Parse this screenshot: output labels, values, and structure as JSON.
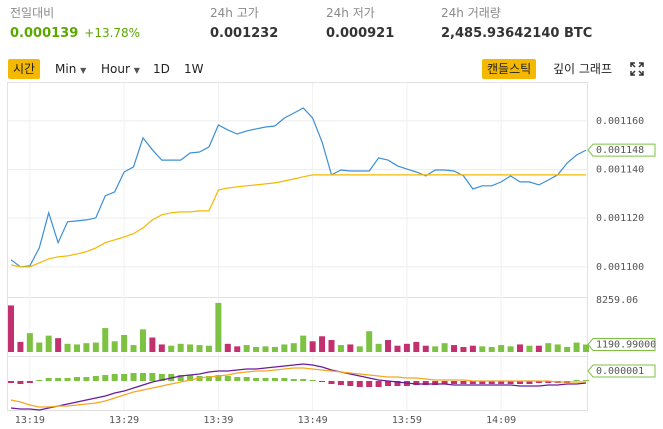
{
  "header": {
    "stats": [
      {
        "label": "전일대비",
        "value": "0.000139",
        "change": "+13.78%"
      },
      {
        "label": "24h 고가",
        "value": "0.001232"
      },
      {
        "label": "24h 저가",
        "value": "0.000921"
      },
      {
        "label": "24h 거래량",
        "value": "2,485.93642140 BTC"
      }
    ]
  },
  "toolbar": {
    "intervals": [
      "시간",
      "Min",
      "Hour",
      "1D",
      "1W"
    ],
    "views": [
      "캔들스틱",
      "깊이 그래프"
    ]
  },
  "chart_data": [
    {
      "type": "line",
      "categories": [
        null,
        null,
        "13:19",
        null,
        null,
        null,
        null,
        null,
        null,
        null,
        null,
        null,
        "13:29",
        null,
        null,
        null,
        null,
        null,
        null,
        null,
        null,
        null,
        "13:39",
        null,
        null,
        null,
        null,
        null,
        null,
        null,
        null,
        null,
        "13:49",
        null,
        null,
        null,
        null,
        null,
        null,
        null,
        null,
        null,
        "13:59",
        null,
        null,
        null,
        null,
        null,
        null,
        null,
        null,
        null,
        "14:09",
        null,
        null,
        null,
        null,
        null,
        null,
        null,
        null,
        null
      ],
      "series": [
        {
          "color": "#3d8fd6",
          "values": [
            0.0011029,
            0.0011,
            0.0011004,
            0.0011078,
            0.0011222,
            0.0011099,
            0.0011185,
            0.0011189,
            0.0011193,
            0.0011201,
            0.0011292,
            0.0011308,
            0.001139,
            0.0011411,
            0.001153,
            0.0011481,
            0.0011439,
            0.0011439,
            0.0011439,
            0.0011468,
            0.0011472,
            0.0011493,
            0.0011583,
            0.0011563,
            0.0011546,
            0.0011559,
            0.0011567,
            0.0011575,
            0.0011579,
            0.0011612,
            0.0011632,
            0.0011653,
            0.0011612,
            0.0011513,
            0.0011378,
            0.0011398,
            0.0011394,
            0.0011394,
            0.0011394,
            0.0011448,
            0.0011439,
            0.0011415,
            0.0011402,
            0.001139,
            0.0011374,
            0.0011398,
            0.0011398,
            0.0011394,
            0.0011374,
            0.001132,
            0.0011333,
            0.0011333,
            0.0011349,
            0.0011374,
            0.0011349,
            0.0011349,
            0.0011337,
            0.0011357,
            0.0011378,
            0.0011427,
            0.001146,
            0.001148
          ]
        },
        {
          "color": "#f5b800",
          "values": [
            0.0011008,
            0.0011,
            0.0011,
            0.0011016,
            0.0011033,
            0.0011041,
            0.0011045,
            0.0011053,
            0.0011062,
            0.0011078,
            0.0011099,
            0.0011111,
            0.0011123,
            0.0011136,
            0.001116,
            0.0011193,
            0.0011214,
            0.0011222,
            0.0011226,
            0.0011226,
            0.001123,
            0.001123,
            0.0011316,
            0.0011324,
            0.0011329,
            0.0011333,
            0.0011337,
            0.0011341,
            0.0011345,
            0.0011353,
            0.0011361,
            0.001137,
            0.0011378,
            0.0011378,
            0.0011378,
            0.0011378,
            0.0011378,
            0.0011378,
            0.0011378,
            0.0011378,
            0.0011378,
            0.0011378,
            0.0011378,
            0.0011378,
            0.0011378,
            0.0011378,
            0.0011378,
            0.0011378,
            0.0011378,
            0.0011378,
            0.0011378,
            0.0011378,
            0.0011378,
            0.0011378,
            0.0011378,
            0.0011378,
            0.0011378,
            0.0011378,
            0.0011378,
            0.0011378,
            0.0011378,
            0.0011378
          ]
        }
      ],
      "ylim": [
        0.001088,
        0.001176
      ],
      "yticks": [
        {
          "value": 0.0011,
          "label": "0.001100"
        },
        {
          "value": 0.00112,
          "label": "0.001120"
        },
        {
          "value": 0.00114,
          "label": "0.001140"
        },
        {
          "value": 0.00116,
          "label": "0.001160"
        }
      ],
      "current": {
        "value": 0.001148,
        "label": "0.001148"
      }
    },
    {
      "type": "bar",
      "values": [
        7400,
        1600,
        3000,
        1500,
        2600,
        2200,
        1300,
        1200,
        1400,
        1500,
        3800,
        1700,
        2700,
        1100,
        3600,
        2300,
        1200,
        1000,
        1300,
        1200,
        1100,
        1000,
        7800,
        1300,
        900,
        1100,
        800,
        900,
        800,
        1200,
        1400,
        2600,
        1700,
        2500,
        1900,
        1100,
        1200,
        900,
        3300,
        1300,
        1900,
        1000,
        1300,
        1600,
        1000,
        900,
        1400,
        1100,
        800,
        1000,
        900,
        800,
        1100,
        900,
        1200,
        1000,
        1000,
        1400,
        1200,
        800,
        1500,
        1190.99
      ],
      "up_color": "#7dc242",
      "down_color": "#c2306f",
      "ylim": [
        0,
        8259.06
      ],
      "yticks": [
        8259.06
      ],
      "current": {
        "value": 1190.99,
        "label": "1190.99000"
      }
    },
    {
      "type": "macd",
      "histogram": [
        -2e-07,
        -3e-07,
        -2e-07,
        1e-07,
        3e-07,
        3e-07,
        3e-07,
        4e-07,
        4e-07,
        5e-07,
        6e-07,
        7e-07,
        7e-07,
        8e-07,
        8e-07,
        8e-07,
        7e-07,
        7e-07,
        6e-07,
        6e-07,
        5e-07,
        5e-07,
        6e-07,
        5e-07,
        4e-07,
        4e-07,
        3e-07,
        3e-07,
        3e-07,
        3e-07,
        2e-07,
        2e-07,
        1e-07,
        -1e-07,
        -3e-07,
        -4e-07,
        -5e-07,
        -6e-07,
        -6e-07,
        -6e-07,
        -5e-07,
        -5e-07,
        -5e-07,
        -4e-07,
        -4e-07,
        -4e-07,
        -3e-07,
        -3e-07,
        -3e-07,
        -3e-07,
        -3e-07,
        -3e-07,
        -3e-07,
        -3e-07,
        -3e-07,
        -3e-07,
        -2e-07,
        -2e-07,
        -2e-07,
        -2e-07,
        1e-07,
        1e-07
      ],
      "up_color": "#7dc242",
      "down_color": "#c2306f",
      "series": [
        {
          "color": "#6a1b9a",
          "values": [
            -2.7e-06,
            -2.8e-06,
            -2.8e-06,
            -2.9e-06,
            -2.7e-06,
            -2.5e-06,
            -2.3e-06,
            -2.1e-06,
            -1.9e-06,
            -1.7e-06,
            -1.5e-06,
            -1.2e-06,
            -1e-06,
            -7e-07,
            -4e-07,
            -1e-07,
            1e-07,
            3e-07,
            5e-07,
            6e-07,
            7e-07,
            9e-07,
            1e-06,
            1e-06,
            1.1e-06,
            1.2e-06,
            1.2e-06,
            1.3e-06,
            1.4e-06,
            1.5e-06,
            1.6e-06,
            1.7e-06,
            1.6e-06,
            1.4e-06,
            1.1e-06,
            9e-07,
            7e-07,
            5e-07,
            3e-07,
            1e-07,
            0,
            -1e-07,
            -2e-07,
            -3e-07,
            -3e-07,
            -3e-07,
            -3e-07,
            -4e-07,
            -4e-07,
            -4e-07,
            -4e-07,
            -4e-07,
            -4e-07,
            -4e-07,
            -5e-07,
            -5e-07,
            -5e-07,
            -4e-07,
            -4e-07,
            -3e-07,
            -3e-07,
            -2e-07
          ]
        },
        {
          "color": "#f5a623",
          "values": [
            -1.9e-06,
            -2.1e-06,
            -2.4e-06,
            -2.6e-06,
            -2.6e-06,
            -2.5e-06,
            -2.5e-06,
            -2.4e-06,
            -2.3e-06,
            -2.2e-06,
            -2e-06,
            -1.7e-06,
            -1.4e-06,
            -1.1e-06,
            -9e-07,
            -7e-07,
            -5e-07,
            -3e-07,
            -1e-07,
            1e-07,
            3e-07,
            4e-07,
            5e-07,
            6e-07,
            8e-07,
            9e-07,
            1e-06,
            1e-06,
            1.1e-06,
            1.2e-06,
            1.3e-06,
            1.3e-06,
            1.2e-06,
            1.1e-06,
            1e-06,
            9e-07,
            8e-07,
            7e-07,
            6e-07,
            5e-07,
            4e-07,
            4e-07,
            3e-07,
            3e-07,
            2e-07,
            1e-07,
            1e-07,
            1e-07,
            1e-07,
            0,
            0,
            0,
            0,
            0,
            0,
            0,
            0,
            0,
            -1e-07,
            -1e-07,
            -1e-07,
            -1e-07
          ]
        }
      ],
      "ylim": [
        -3.1e-06,
        2.3e-06
      ],
      "current": {
        "value": 1e-06,
        "label": "0.000001"
      }
    }
  ]
}
